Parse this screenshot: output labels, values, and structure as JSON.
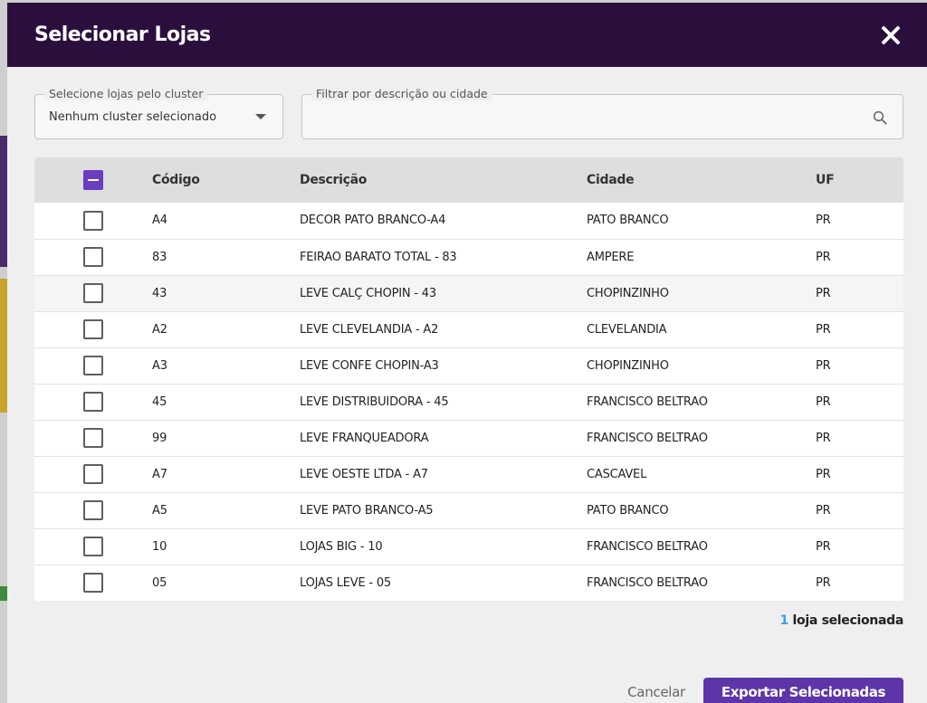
{
  "modal": {
    "title": "Selecionar Lojas",
    "close_icon": "close-icon"
  },
  "filters": {
    "cluster": {
      "label": "Selecione lojas pelo cluster",
      "value": "Nenhum cluster selecionado"
    },
    "search": {
      "label": "Filtrar por descrição ou cidade",
      "value": "",
      "icon": "search-icon"
    }
  },
  "table": {
    "headers": {
      "code": "Código",
      "description": "Descrição",
      "city": "Cidade",
      "uf": "UF"
    },
    "rows": [
      {
        "code": "A4",
        "description": "DECOR PATO BRANCO-A4",
        "city": "PATO BRANCO",
        "uf": "PR",
        "checked": false
      },
      {
        "code": "83",
        "description": "FEIRAO BARATO TOTAL - 83",
        "city": "AMPERE",
        "uf": "PR",
        "checked": false
      },
      {
        "code": "43",
        "description": "LEVE CALÇ CHOPIN - 43",
        "city": "CHOPINZINHO",
        "uf": "PR",
        "checked": false
      },
      {
        "code": "A2",
        "description": "LEVE CLEVELANDIA - A2",
        "city": "CLEVELANDIA",
        "uf": "PR",
        "checked": false
      },
      {
        "code": "A3",
        "description": "LEVE CONFE CHOPIN-A3",
        "city": "CHOPINZINHO",
        "uf": "PR",
        "checked": false
      },
      {
        "code": "45",
        "description": "LEVE DISTRIBUIDORA - 45",
        "city": "FRANCISCO BELTRAO",
        "uf": "PR",
        "checked": false
      },
      {
        "code": "99",
        "description": "LEVE FRANQUEADORA",
        "city": "FRANCISCO BELTRAO",
        "uf": "PR",
        "checked": false
      },
      {
        "code": "A7",
        "description": "LEVE OESTE LTDA - A7",
        "city": "CASCAVEL",
        "uf": "PR",
        "checked": false
      },
      {
        "code": "A5",
        "description": "LEVE PATO BRANCO-A5",
        "city": "PATO BRANCO",
        "uf": "PR",
        "checked": false
      },
      {
        "code": "10",
        "description": "LOJAS BIG - 10",
        "city": "FRANCISCO BELTRAO",
        "uf": "PR",
        "checked": false
      },
      {
        "code": "05",
        "description": "LOJAS LEVE - 05",
        "city": "FRANCISCO BELTRAO",
        "uf": "PR",
        "checked": false
      }
    ]
  },
  "selection": {
    "count": "1",
    "label": "loja selecionada"
  },
  "footer": {
    "cancel_label": "Cancelar",
    "export_label": "Exportar Selecionadas"
  },
  "colors": {
    "header_bg": "#2a0f3d",
    "accent": "#5d35a8",
    "count_accent": "#3a9ee8"
  }
}
